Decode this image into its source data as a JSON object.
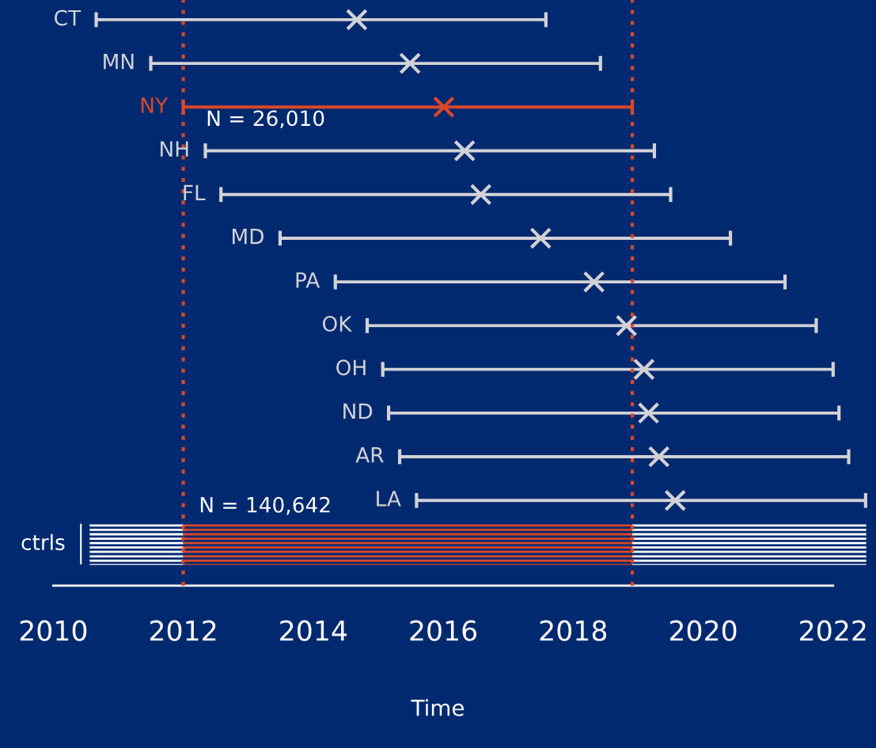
{
  "chart_data": {
    "type": "bar",
    "orientation": "horizontal",
    "xlabel": "Time",
    "categories": [
      "CT",
      "MN",
      "NY",
      "NH",
      "FL",
      "MD",
      "PA",
      "OK",
      "OH",
      "ND",
      "AR",
      "LA",
      "ctrls"
    ],
    "series": [
      {
        "type": "bar",
        "base": [
          2010.66,
          2011.5,
          2012.0,
          2012.34,
          2012.58,
          2013.49,
          2014.34,
          2014.83,
          2015.07,
          2015.16,
          2015.33,
          2015.59,
          null
        ],
        "values": [
          6.92,
          6.92,
          6.91,
          6.91,
          6.92,
          6.93,
          6.92,
          6.91,
          6.93,
          6.93,
          6.91,
          6.91,
          null
        ],
        "colors": [
          "#d2d2d6",
          "#d2d2d6",
          "#d9482a",
          "#d2d2d6",
          "#d2d2d6",
          "#d2d2d6",
          "#d2d2d6",
          "#d2d2d6",
          "#d2d2d6",
          "#d2d2d6",
          "#d2d2d6",
          "#d2d2d6",
          null
        ],
        "line_style": "solid"
      },
      {
        "type": "bar",
        "base": [
          null,
          null,
          null,
          null,
          null,
          null,
          null,
          null,
          null,
          null,
          null,
          null,
          2010.56
        ],
        "values": [
          null,
          null,
          null,
          null,
          null,
          null,
          null,
          null,
          null,
          null,
          null,
          null,
          1.44
        ],
        "color": "#ffffff",
        "line_style": "dashed"
      },
      {
        "type": "bar",
        "base": [
          null,
          null,
          null,
          null,
          null,
          null,
          null,
          null,
          null,
          null,
          null,
          null,
          2012.0
        ],
        "values": [
          null,
          null,
          null,
          null,
          null,
          null,
          null,
          null,
          null,
          null,
          null,
          null,
          6.91
        ],
        "color": "#d9482a",
        "line_style": "dashed"
      },
      {
        "type": "bar",
        "base": [
          null,
          null,
          null,
          null,
          null,
          null,
          null,
          null,
          null,
          null,
          null,
          null,
          2018.91
        ],
        "values": [
          null,
          null,
          null,
          null,
          null,
          null,
          null,
          null,
          null,
          null,
          null,
          null,
          3.6
        ],
        "color": "#ffffff",
        "line_style": "dashed"
      },
      {
        "type": "scatter",
        "marker": "cross",
        "values": [
          2014.67,
          2015.49,
          2016.01,
          2016.33,
          2016.58,
          2017.5,
          2018.32,
          2018.82,
          2019.09,
          2019.16,
          2019.32,
          2019.57,
          null
        ],
        "colors": [
          "#d2d2d6",
          "#d2d2d6",
          "#d9482a",
          "#d2d2d6",
          "#d2d2d6",
          "#d2d2d6",
          "#d2d2d6",
          "#d2d2d6",
          "#d2d2d6",
          "#d2d2d6",
          "#d2d2d6",
          "#d2d2d6",
          null
        ]
      }
    ],
    "xlim": [
      2009.18,
      2022.66
    ],
    "xticks": [
      2010,
      2012,
      2014,
      2016,
      2018,
      2020,
      2022
    ],
    "ref_lines": [
      {
        "axis": "x",
        "value": 2012.0,
        "color": "#d9482a",
        "line_style": "dotted"
      },
      {
        "axis": "x",
        "value": 2018.91,
        "color": "#d9482a",
        "line_style": "dotted"
      }
    ],
    "annotations": [
      "N = 26,010",
      "N = 140,642"
    ]
  }
}
